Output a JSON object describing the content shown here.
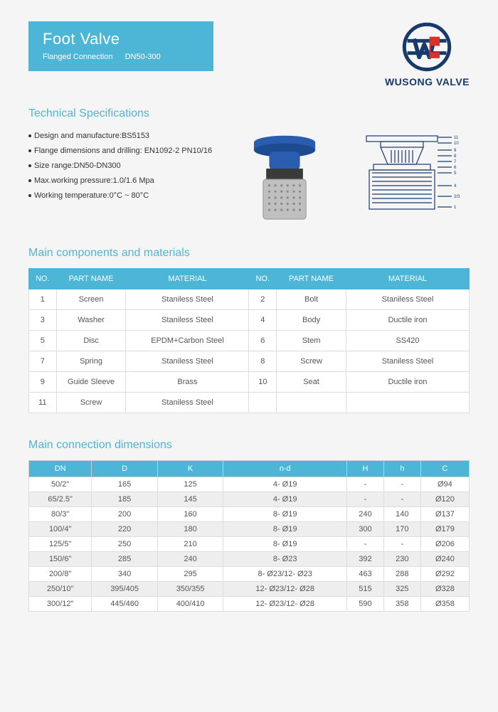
{
  "header": {
    "title": "Foot Valve",
    "subtitle": "Flanged Connection   DN50-300"
  },
  "logo": {
    "brand": "WUSONG VALVE",
    "ring_color": "#173a6b",
    "accent_color": "#d6332a"
  },
  "colors": {
    "accent": "#4db6d6",
    "brand_navy": "#173a6b",
    "text": "#333333",
    "cell_text": "#555555",
    "border": "#dddddd",
    "alt_row": "#eeeeee",
    "background": "#f5f5f5"
  },
  "spec_section": {
    "title": "Technical Specifications",
    "items": [
      "Design and manufacture:BS5153",
      "Flange dimensions and drilling: EN1092-2 PN10/16",
      "Size range:DN50-DN300",
      "Max.working pressure:1.0/1.6 Mpa",
      "Working temperature:0°C ~ 80°C"
    ]
  },
  "components_section": {
    "title": "Main components and materials",
    "headers": {
      "no": "NO.",
      "part": "PART NAME",
      "material": "MATERIAL"
    },
    "rows": [
      [
        {
          "no": "1",
          "part": "Screen",
          "mat": "Staniless Steel"
        },
        {
          "no": "2",
          "part": "Bolt",
          "mat": "Staniless Steel"
        }
      ],
      [
        {
          "no": "3",
          "part": "Washer",
          "mat": "Staniless Steel"
        },
        {
          "no": "4",
          "part": "Body",
          "mat": "Ductile iron"
        }
      ],
      [
        {
          "no": "5",
          "part": "Disc",
          "mat": "EPDM+Carbon Steel"
        },
        {
          "no": "6",
          "part": "Stem",
          "mat": "SS420"
        }
      ],
      [
        {
          "no": "7",
          "part": "Spring",
          "mat": "Staniless Steel"
        },
        {
          "no": "8",
          "part": "Screw",
          "mat": "Staniless Steel"
        }
      ],
      [
        {
          "no": "9",
          "part": "Guide Sleeve",
          "mat": "Brass"
        },
        {
          "no": "10",
          "part": "Seat",
          "mat": "Ductile iron"
        }
      ],
      [
        {
          "no": "11",
          "part": "Screw",
          "mat": "Staniless Steel"
        },
        {
          "no": "",
          "part": "",
          "mat": ""
        }
      ]
    ]
  },
  "dimensions_section": {
    "title": "Main connection dimensions",
    "headers": [
      "DN",
      "D",
      "K",
      "n-d",
      "H",
      "h",
      "C"
    ],
    "rows": [
      [
        "50/2\"",
        "165",
        "125",
        "4- Ø19",
        "-",
        "-",
        "Ø94"
      ],
      [
        "65/2.5\"",
        "185",
        "145",
        "4- Ø19",
        "-",
        "-",
        "Ø120"
      ],
      [
        "80/3\"",
        "200",
        "160",
        "8- Ø19",
        "240",
        "140",
        "Ø137"
      ],
      [
        "100/4\"",
        "220",
        "180",
        "8- Ø19",
        "300",
        "170",
        "Ø179"
      ],
      [
        "125/5\"",
        "250",
        "210",
        "8- Ø19",
        "-",
        "-",
        "Ø206"
      ],
      [
        "150/6\"",
        "285",
        "240",
        "8- Ø23",
        "392",
        "230",
        "Ø240"
      ],
      [
        "200/8\"",
        "340",
        "295",
        "8- Ø23/12- Ø23",
        "463",
        "288",
        "Ø292"
      ],
      [
        "250/10\"",
        "395/405",
        "350/355",
        "12- Ø23/12- Ø28",
        "515",
        "325",
        "Ø328"
      ],
      [
        "300/12\"",
        "445/460",
        "400/410",
        "12- Ø23/12- Ø28",
        "590",
        "358",
        "Ø358"
      ]
    ],
    "alt_indices": [
      1,
      3,
      5,
      7
    ]
  },
  "product_image": {
    "flange_color": "#2a5db0",
    "body_color": "#3a3a3a",
    "strainer_color": "#bfbfbf"
  },
  "diagram": {
    "stroke": "#173a6b",
    "label_count": 11
  }
}
